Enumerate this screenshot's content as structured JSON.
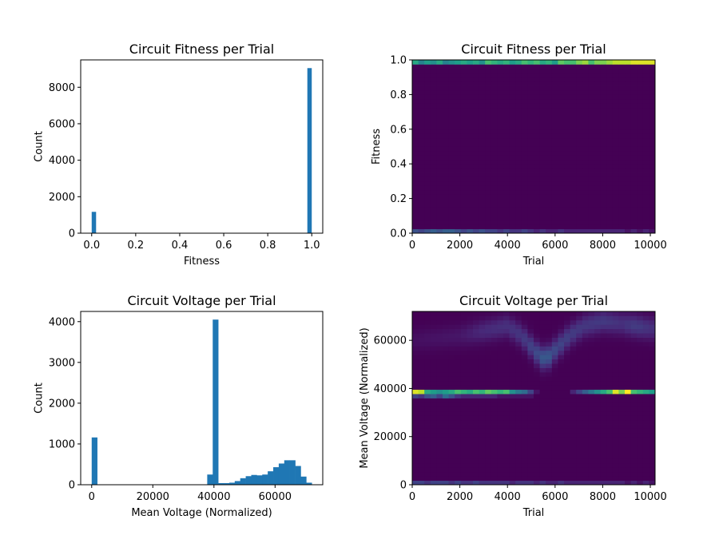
{
  "chart_data": [
    {
      "type": "bar",
      "title": "Circuit Fitness per Trial",
      "xlabel": "Fitness",
      "ylabel": "Count",
      "xlim": [
        -0.05,
        1.05
      ],
      "ylim": [
        0,
        9500
      ],
      "xticks": [
        0.0,
        0.2,
        0.4,
        0.6,
        0.8,
        1.0
      ],
      "xtick_labels": [
        "0.0",
        "0.2",
        "0.4",
        "0.6",
        "0.8",
        "1.0"
      ],
      "yticks": [
        0,
        2000,
        4000,
        6000,
        8000
      ],
      "ytick_labels": [
        "0",
        "2000",
        "4000",
        "6000",
        "8000"
      ],
      "bar_color": "#1f77b4",
      "bins": [
        {
          "x0": 0.0,
          "x1": 0.02,
          "count": 1170
        },
        {
          "x0": 0.98,
          "x1": 1.0,
          "count": 9050
        }
      ]
    },
    {
      "type": "heatmap",
      "title": "Circuit Fitness per Trial",
      "xlabel": "Trial",
      "ylabel": "Fitness",
      "xlim": [
        0,
        10200
      ],
      "ylim": [
        0,
        1.0
      ],
      "xticks": [
        0,
        2000,
        4000,
        6000,
        8000,
        10000
      ],
      "xtick_labels": [
        "0",
        "2000",
        "4000",
        "6000",
        "8000",
        "10000"
      ],
      "yticks": [
        0.0,
        0.2,
        0.4,
        0.6,
        0.8,
        1.0
      ],
      "ytick_labels": [
        "0.0",
        "0.2",
        "0.4",
        "0.6",
        "0.8",
        "1.0"
      ],
      "colormap": "viridis",
      "nx": 40,
      "ny": 40,
      "rows": [
        {
          "y_bin": 39,
          "values": [
            0.6,
            0.45,
            0.55,
            0.5,
            0.6,
            0.45,
            0.5,
            0.55,
            0.6,
            0.55,
            0.6,
            0.5,
            0.7,
            0.65,
            0.6,
            0.65,
            0.55,
            0.6,
            0.7,
            0.65,
            0.7,
            0.6,
            0.65,
            0.55,
            0.75,
            0.7,
            0.7,
            0.8,
            0.85,
            0.7,
            0.8,
            0.8,
            0.85,
            0.9,
            0.9,
            0.9,
            0.95,
            0.95,
            0.95,
            0.95
          ]
        },
        {
          "y_bin": 0,
          "values": [
            0.25,
            0.2,
            0.25,
            0.3,
            0.25,
            0.3,
            0.3,
            0.25,
            0.2,
            0.25,
            0.2,
            0.25,
            0.2,
            0.2,
            0.15,
            0.2,
            0.15,
            0.15,
            0.2,
            0.15,
            0.1,
            0.15,
            0.1,
            0.1,
            0.15,
            0.1,
            0.1,
            0.1,
            0.1,
            0.1,
            0.1,
            0.1,
            0.1,
            0.1,
            0.1,
            0.05,
            0.1,
            0.05,
            0.1,
            0.05
          ]
        }
      ]
    },
    {
      "type": "bar",
      "title": "Circuit Voltage per Trial",
      "xlabel": "Mean Voltage (Normalized)",
      "ylabel": "Count",
      "xlim": [
        -3600,
        75600
      ],
      "ylim": [
        0,
        4250
      ],
      "xticks": [
        0,
        20000,
        40000,
        60000
      ],
      "xtick_labels": [
        "0",
        "20000",
        "40000",
        "60000"
      ],
      "yticks": [
        0,
        1000,
        2000,
        3000,
        4000
      ],
      "ytick_labels": [
        "0",
        "1000",
        "2000",
        "3000",
        "4000"
      ],
      "bar_color": "#1f77b4",
      "bin_width": 1800,
      "bins": [
        {
          "x0": 0,
          "count": 1160
        },
        {
          "x0": 37800,
          "count": 250
        },
        {
          "x0": 39600,
          "count": 4050
        },
        {
          "x0": 41400,
          "count": 40
        },
        {
          "x0": 43200,
          "count": 40
        },
        {
          "x0": 45000,
          "count": 50
        },
        {
          "x0": 46800,
          "count": 90
        },
        {
          "x0": 48600,
          "count": 160
        },
        {
          "x0": 50400,
          "count": 210
        },
        {
          "x0": 52200,
          "count": 240
        },
        {
          "x0": 54000,
          "count": 230
        },
        {
          "x0": 55800,
          "count": 250
        },
        {
          "x0": 57600,
          "count": 330
        },
        {
          "x0": 59400,
          "count": 430
        },
        {
          "x0": 61200,
          "count": 520
        },
        {
          "x0": 63000,
          "count": 600
        },
        {
          "x0": 64800,
          "count": 600
        },
        {
          "x0": 66600,
          "count": 460
        },
        {
          "x0": 68400,
          "count": 200
        },
        {
          "x0": 70200,
          "count": 50
        }
      ]
    },
    {
      "type": "heatmap",
      "title": "Circuit Voltage per Trial",
      "xlabel": "Trial",
      "ylabel": "Mean Voltage (Normalized)",
      "xlim": [
        0,
        10200
      ],
      "ylim": [
        0,
        72000
      ],
      "xticks": [
        0,
        2000,
        4000,
        6000,
        8000,
        10000
      ],
      "xtick_labels": [
        "0",
        "2000",
        "4000",
        "6000",
        "8000",
        "10000"
      ],
      "yticks": [
        0,
        20000,
        40000,
        60000
      ],
      "ytick_labels": [
        "0",
        "20000",
        "40000",
        "60000"
      ],
      "colormap": "viridis",
      "nx": 40,
      "ny": 40,
      "rows": [
        {
          "y_bin": 21,
          "values": [
            0.95,
            0.9,
            0.6,
            0.55,
            0.5,
            0.55,
            0.6,
            0.7,
            0.65,
            0.6,
            0.7,
            0.65,
            0.75,
            0.7,
            0.65,
            0.7,
            0.5,
            0.4,
            0.35,
            0.2,
            0.05,
            0.0,
            0.0,
            0.0,
            0.0,
            0.0,
            0.1,
            0.2,
            0.3,
            0.4,
            0.5,
            0.6,
            0.7,
            0.95,
            0.8,
            1.0,
            0.7,
            0.65,
            0.6,
            0.55
          ]
        },
        {
          "y_bin": 20,
          "values": [
            0.2,
            0.15,
            0.25,
            0.3,
            0.2,
            0.35,
            0.25,
            0.15,
            0.1,
            0.1,
            0.1,
            0.1,
            0.1,
            0.1,
            0.05,
            0.05,
            0.05,
            0.05,
            0.05,
            0.05,
            0.0,
            0.0,
            0.0,
            0.0,
            0.0,
            0.0,
            0.0,
            0.0,
            0.0,
            0.0,
            0.0,
            0.0,
            0.0,
            0.0,
            0.0,
            0.0,
            0.0,
            0.0,
            0.0,
            0.0
          ]
        },
        {
          "y_bin": 0,
          "values": [
            0.2,
            0.2,
            0.15,
            0.2,
            0.2,
            0.2,
            0.15,
            0.2,
            0.15,
            0.15,
            0.2,
            0.15,
            0.15,
            0.15,
            0.15,
            0.15,
            0.1,
            0.15,
            0.15,
            0.15,
            0.1,
            0.15,
            0.1,
            0.1,
            0.15,
            0.1,
            0.1,
            0.1,
            0.1,
            0.1,
            0.1,
            0.1,
            0.1,
            0.1,
            0.1,
            0.05,
            0.1,
            0.05,
            0.1,
            0.05
          ]
        }
      ],
      "band": {
        "description_points": [
          [
            0,
            60000,
            0.04
          ],
          [
            1000,
            61000,
            0.05
          ],
          [
            2000,
            62000,
            0.06
          ],
          [
            3000,
            64000,
            0.12
          ],
          [
            4000,
            66000,
            0.14
          ],
          [
            4600,
            62000,
            0.16
          ],
          [
            5200,
            55000,
            0.22
          ],
          [
            5600,
            52000,
            0.3
          ],
          [
            6000,
            56000,
            0.22
          ],
          [
            6600,
            62000,
            0.18
          ],
          [
            7200,
            66000,
            0.16
          ],
          [
            8000,
            68000,
            0.17
          ],
          [
            8800,
            67000,
            0.14
          ],
          [
            9400,
            66000,
            0.18
          ],
          [
            10000,
            65000,
            0.14
          ]
        ]
      }
    }
  ]
}
